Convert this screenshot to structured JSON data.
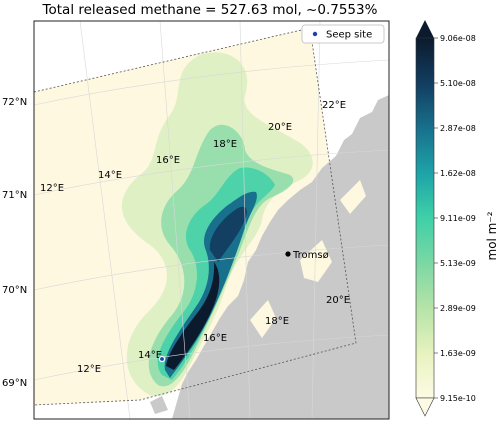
{
  "title": "Total released methane = 527.63 mol, ~0.7553%",
  "legend": {
    "label": "Seep site",
    "marker_color": "#1f3fb0"
  },
  "colorbar": {
    "unit_label": "mol m⁻²",
    "ticks": [
      "9.06e-08",
      "5.10e-08",
      "2.87e-08",
      "1.62e-08",
      "9.11e-09",
      "5.13e-09",
      "2.89e-09",
      "1.63e-09",
      "9.15e-10"
    ],
    "colors": [
      "#fdfbe4",
      "#e8f3c0",
      "#b6e3a8",
      "#7dd8a4",
      "#3fd0a8",
      "#1ea5a8",
      "#18708c",
      "#123f62",
      "#0c1a2e"
    ]
  },
  "latitude_labels": [
    "72°N",
    "71°N",
    "70°N",
    "69°N"
  ],
  "longitude_labels_inner": [
    "12°E",
    "14°E",
    "16°E",
    "18°E",
    "20°E",
    "22°E"
  ],
  "longitude_labels_lower": [
    "14°E",
    "16°E",
    "18°E",
    "20°E",
    "12°E"
  ],
  "place_label": "Tromsø",
  "colors": {
    "land": "#c9c9c9",
    "background": "#fdf8df",
    "frame": "#333333"
  }
}
